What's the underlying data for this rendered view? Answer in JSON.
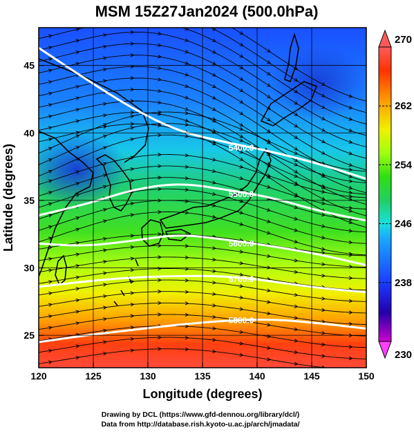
{
  "title": "MSM 15Z27Jan2024 (500.0hPa)",
  "xlabel": "Longitude (degrees)",
  "ylabel": "Latitude  (degrees)",
  "xticks": [
    "120",
    "125",
    "130",
    "135",
    "140",
    "145",
    "150"
  ],
  "yticks": [
    "25",
    "30",
    "35",
    "40",
    "45"
  ],
  "colorbar": {
    "min": "230",
    "max": "270",
    "ticks": [
      "238",
      "246",
      "254",
      "262"
    ],
    "colors": [
      "#cc00cc",
      "#2200aa",
      "#1a3cff",
      "#19a8ff",
      "#19e0e0",
      "#20d060",
      "#30e010",
      "#a0ff10",
      "#f0f000",
      "#ff9900",
      "#ff3300",
      "#ff5a5a"
    ]
  },
  "contours": [
    {
      "label": "5400.0",
      "lat": [
        46.3,
        44.0,
        41.8,
        40.1,
        39.3,
        38.6,
        37.7,
        36.6
      ]
    },
    {
      "label": "5500.0",
      "lat": [
        33.9,
        34.7,
        35.8,
        36.3,
        35.8,
        35.2,
        34.2,
        33.5
      ]
    },
    {
      "label": "5600.0",
      "lat": [
        31.8,
        31.6,
        32.0,
        32.5,
        32.1,
        31.6,
        31.0,
        30.2
      ]
    },
    {
      "label": "5700.0",
      "lat": [
        28.6,
        29.0,
        29.3,
        29.4,
        29.4,
        29.0,
        28.5,
        28.2
      ]
    },
    {
      "label": "5800.0",
      "lat": [
        24.5,
        25.0,
        25.4,
        25.8,
        26.1,
        26.2,
        25.9,
        25.5
      ]
    }
  ],
  "footer": {
    "line1": "Drawing by DCL (https://www.gfd-dennou.org/library/dcl/)",
    "line2": "Data from http://database.rish.kyoto-u.ac.jp/arch/jmadata/"
  },
  "colors": {
    "land_outline": "#000000",
    "contour_line": "#ffffff",
    "streamline": "#000000"
  }
}
